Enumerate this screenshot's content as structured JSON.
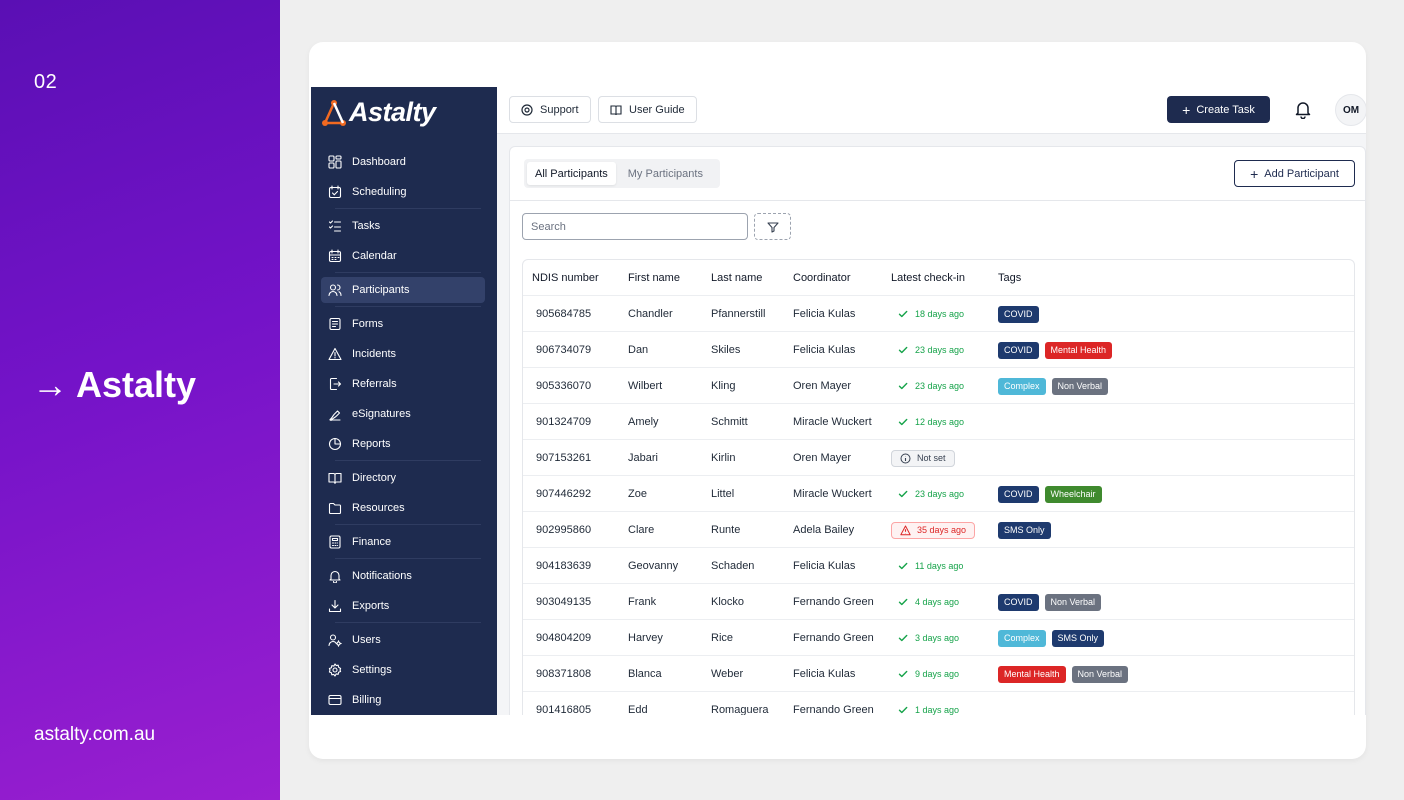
{
  "promo": {
    "number": "02",
    "brand": "Astalty",
    "arrow": "→",
    "url": "astalty.com.au"
  },
  "logo": {
    "text": "Astalty"
  },
  "sidebar": {
    "items": [
      {
        "label": "Dashboard",
        "icon": "dashboard-icon",
        "top": 2
      },
      {
        "label": "Scheduling",
        "icon": "scheduling-icon"
      },
      {
        "label": "Tasks",
        "icon": "tasks-icon"
      },
      {
        "label": "Calendar",
        "icon": "calendar-icon"
      },
      {
        "label": "Participants",
        "icon": "participants-icon",
        "active": true
      },
      {
        "label": "Forms",
        "icon": "forms-icon"
      },
      {
        "label": "Incidents",
        "icon": "incidents-icon"
      },
      {
        "label": "Referrals",
        "icon": "referrals-icon"
      },
      {
        "label": "eSignatures",
        "icon": "esignatures-icon"
      },
      {
        "label": "Reports",
        "icon": "reports-icon"
      },
      {
        "label": "Directory",
        "icon": "directory-icon"
      },
      {
        "label": "Resources",
        "icon": "resources-icon"
      },
      {
        "label": "Finance",
        "icon": "finance-icon"
      },
      {
        "label": "Notifications",
        "icon": "notifications-icon"
      },
      {
        "label": "Exports",
        "icon": "exports-icon"
      },
      {
        "label": "Users",
        "icon": "users-icon"
      },
      {
        "label": "Settings",
        "icon": "settings-icon"
      },
      {
        "label": "Billing",
        "icon": "billing-icon"
      }
    ]
  },
  "topbar": {
    "support_label": "Support",
    "guide_label": "User Guide",
    "create_label": "Create Task",
    "avatar_initials": "OM"
  },
  "main": {
    "tabs": [
      {
        "label": "All Participants",
        "active": true
      },
      {
        "label": "My Participants",
        "active": false
      }
    ],
    "add_label": "Add Participant",
    "search_placeholder": "Search",
    "columns": [
      "NDIS number",
      "First name",
      "Last name",
      "Coordinator",
      "Latest check-in",
      "Tags"
    ],
    "rows": [
      {
        "ndis": "905684785",
        "first": "Chandler",
        "last": "Pfannerstill",
        "coord": "Felicia Kulas",
        "checkin": "18 days ago",
        "status": "ok",
        "tags": [
          "COVID"
        ]
      },
      {
        "ndis": "906734079",
        "first": "Dan",
        "last": "Skiles",
        "coord": "Felicia Kulas",
        "checkin": "23 days ago",
        "status": "ok",
        "tags": [
          "COVID",
          "Mental Health"
        ]
      },
      {
        "ndis": "905336070",
        "first": "Wilbert",
        "last": "Kling",
        "coord": "Oren Mayer",
        "checkin": "23 days ago",
        "status": "ok",
        "tags": [
          "Complex",
          "Non Verbal"
        ]
      },
      {
        "ndis": "901324709",
        "first": "Amely",
        "last": "Schmitt",
        "coord": "Miracle Wuckert",
        "checkin": "12 days ago",
        "status": "ok",
        "tags": []
      },
      {
        "ndis": "907153261",
        "first": "Jabari",
        "last": "Kirlin",
        "coord": "Oren Mayer",
        "checkin": "Not set",
        "status": "notset",
        "tags": []
      },
      {
        "ndis": "907446292",
        "first": "Zoe",
        "last": "Littel",
        "coord": "Miracle Wuckert",
        "checkin": "23 days ago",
        "status": "ok",
        "tags": [
          "COVID",
          "Wheelchair"
        ]
      },
      {
        "ndis": "902995860",
        "first": "Clare",
        "last": "Runte",
        "coord": "Adela Bailey",
        "checkin": "35 days ago",
        "status": "late",
        "tags": [
          "SMS Only"
        ]
      },
      {
        "ndis": "904183639",
        "first": "Geovanny",
        "last": "Schaden",
        "coord": "Felicia Kulas",
        "checkin": "11 days ago",
        "status": "ok",
        "tags": []
      },
      {
        "ndis": "903049135",
        "first": "Frank",
        "last": "Klocko",
        "coord": "Fernando Green",
        "checkin": "4 days ago",
        "status": "ok",
        "tags": [
          "COVID",
          "Non Verbal"
        ]
      },
      {
        "ndis": "904804209",
        "first": "Harvey",
        "last": "Rice",
        "coord": "Fernando Green",
        "checkin": "3 days ago",
        "status": "ok",
        "tags": [
          "Complex",
          "SMS Only"
        ]
      },
      {
        "ndis": "908371808",
        "first": "Blanca",
        "last": "Weber",
        "coord": "Felicia Kulas",
        "checkin": "9 days ago",
        "status": "ok",
        "tags": [
          "Mental Health",
          "Non Verbal"
        ]
      },
      {
        "ndis": "901416805",
        "first": "Edd",
        "last": "Romaguera",
        "coord": "Fernando Green",
        "checkin": "1 days ago",
        "status": "ok",
        "tags": []
      }
    ]
  },
  "colors": {
    "sidebar": "#1e2b4f",
    "accent": "#1e2b4f",
    "tags": {
      "COVID": "#1e3a6e",
      "Mental Health": "#dc2626",
      "Complex": "#4fb8d8",
      "Non Verbal": "#6b7280",
      "Wheelchair": "#3f8a2e",
      "SMS Only": "#1e3a6e"
    }
  }
}
